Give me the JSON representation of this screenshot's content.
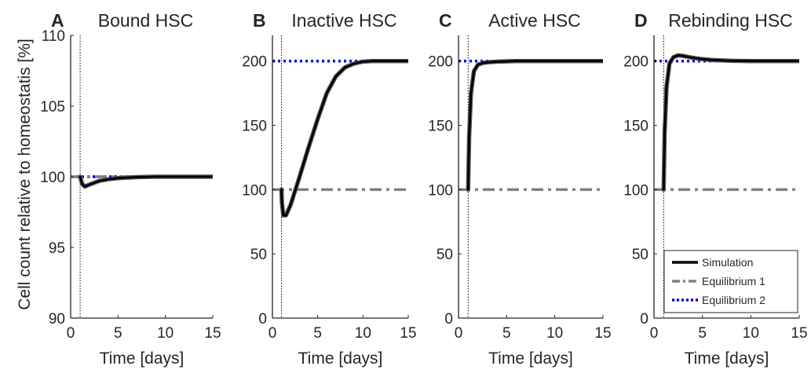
{
  "figure": {
    "ylabel": "Cell count relative to homeostatis [%]",
    "xlabel": "Time [days]"
  },
  "legend": {
    "entries": [
      {
        "label": "Simulation",
        "style": "solid",
        "color": "#000000"
      },
      {
        "label": "Equilibrium 1",
        "style": "dashdot",
        "color": "#808080"
      },
      {
        "label": "Equilibrium 2",
        "style": "dotted",
        "color": "#0000e6"
      }
    ]
  },
  "colors": {
    "simulation": "#000000",
    "simulation_shadow": "#555555",
    "equilibrium1": "#808080",
    "equilibrium2": "#0000e6",
    "marker": "#000000"
  },
  "chart_data": [
    {
      "type": "line",
      "panel_letter": "A",
      "title": "Bound HSC",
      "xlabel": "Time [days]",
      "ylabel": "Cell count relative to homeostatis [%]",
      "xlim": [
        0,
        15
      ],
      "ylim": [
        90,
        110
      ],
      "xticks": [
        0,
        5,
        10,
        15
      ],
      "yticks": [
        90,
        95,
        100,
        105,
        110
      ],
      "marker_x": 1,
      "equilibrium1": 100,
      "equilibrium2": 100,
      "series": [
        {
          "name": "Simulation",
          "x": [
            1,
            1.2,
            1.5,
            2,
            3,
            4,
            5,
            7,
            9,
            12,
            15
          ],
          "y": [
            100,
            99.5,
            99.3,
            99.45,
            99.7,
            99.82,
            99.9,
            99.97,
            100,
            100,
            100
          ]
        }
      ]
    },
    {
      "type": "line",
      "panel_letter": "B",
      "title": "Inactive HSC",
      "xlabel": "Time [days]",
      "ylabel": "",
      "xlim": [
        0,
        15
      ],
      "ylim": [
        0,
        220
      ],
      "xticks": [
        0,
        5,
        10,
        15
      ],
      "yticks": [
        0,
        50,
        100,
        150,
        200
      ],
      "marker_x": 1,
      "equilibrium1": 100,
      "equilibrium2": 200,
      "series": [
        {
          "name": "Simulation",
          "x": [
            1,
            1.05,
            1.2,
            1.5,
            2,
            3,
            4,
            5,
            6,
            7,
            8,
            9,
            10,
            11,
            13,
            15
          ],
          "y": [
            100,
            90,
            80,
            80,
            88,
            110,
            133,
            155,
            175,
            188,
            195,
            198,
            199.5,
            200,
            200,
            200
          ]
        }
      ]
    },
    {
      "type": "line",
      "panel_letter": "C",
      "title": "Active HSC",
      "xlabel": "Time [days]",
      "ylabel": "",
      "xlim": [
        0,
        15
      ],
      "ylim": [
        0,
        220
      ],
      "xticks": [
        0,
        5,
        10,
        15
      ],
      "yticks": [
        0,
        50,
        100,
        150,
        200
      ],
      "marker_x": 1,
      "equilibrium1": 100,
      "equilibrium2": 200,
      "series": [
        {
          "name": "Simulation",
          "x": [
            1,
            1.1,
            1.3,
            1.6,
            2,
            2.5,
            3,
            4,
            6,
            10,
            15
          ],
          "y": [
            100,
            140,
            175,
            192,
            197,
            198.5,
            199,
            199.5,
            200,
            200,
            200
          ]
        }
      ]
    },
    {
      "type": "line",
      "panel_letter": "D",
      "title": "Rebinding HSC",
      "xlabel": "Time [days]",
      "ylabel": "",
      "xlim": [
        0,
        15
      ],
      "ylim": [
        0,
        220
      ],
      "xticks": [
        0,
        5,
        10,
        15
      ],
      "yticks": [
        0,
        50,
        100,
        150,
        200
      ],
      "marker_x": 1,
      "equilibrium1": 100,
      "equilibrium2": 200,
      "series": [
        {
          "name": "Simulation",
          "x": [
            1,
            1.1,
            1.3,
            1.6,
            2,
            2.5,
            3,
            4,
            5,
            6,
            8,
            10,
            15
          ],
          "y": [
            100,
            145,
            180,
            198,
            203,
            204.5,
            204,
            202.5,
            201.5,
            200.8,
            200.2,
            200,
            200
          ]
        }
      ]
    }
  ]
}
